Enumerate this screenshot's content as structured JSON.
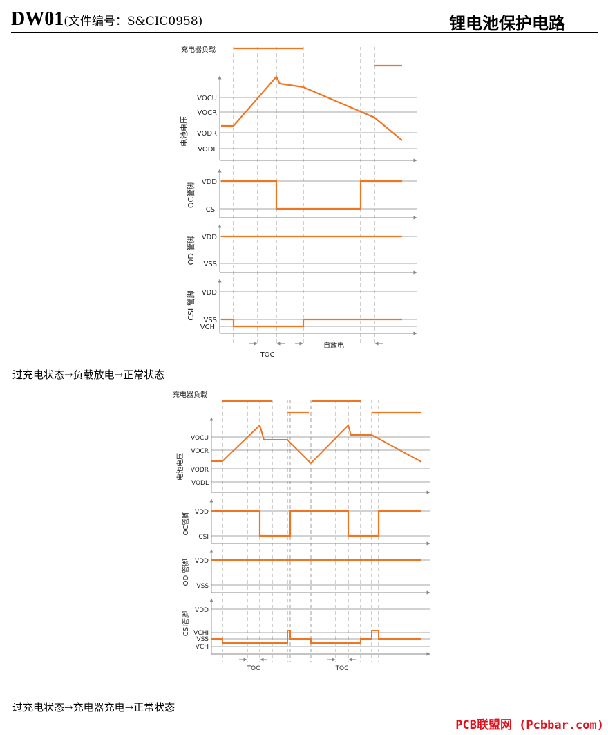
{
  "header": {
    "brand": "DW01",
    "doc_number": "(文件编号：S&CIC0958)",
    "title": "锂电池保护电路"
  },
  "diagram1": {
    "load_label": "充电器负载",
    "panels": [
      {
        "axis_label": "电池电压",
        "levels": [
          "VOCU",
          "VOCR",
          "VODR",
          "VODL"
        ]
      },
      {
        "axis_label": "OC管脚",
        "levels": [
          "VDD",
          "CSI"
        ]
      },
      {
        "axis_label": "OD 管脚",
        "levels": [
          "VDD",
          "VSS"
        ]
      },
      {
        "axis_label": "CSI 管脚",
        "levels": [
          "VDD",
          "VSS",
          "VCHI"
        ]
      }
    ],
    "time_labels": [
      "TOC",
      "自放电"
    ]
  },
  "caption1": "过充电状态→负载放电→正常状态",
  "diagram2": {
    "load_label": "充电器负载",
    "panels": [
      {
        "axis_label": "电池电压",
        "levels": [
          "VOCU",
          "VOCR",
          "VODR",
          "VODL"
        ]
      },
      {
        "axis_label": "OC管脚",
        "levels": [
          "VDD",
          "CSI"
        ]
      },
      {
        "axis_label": "OD 管脚",
        "levels": [
          "VDD",
          "VSS"
        ]
      },
      {
        "axis_label": "CSI管脚",
        "levels": [
          "VDD",
          "VCHI",
          "VSS",
          "VCH"
        ]
      }
    ],
    "time_labels": [
      "TOC",
      "TOC"
    ]
  },
  "caption2": "过充电状态→充电器充电→正常状态",
  "watermark": "PCB联盟网 (Pcbbar.com)",
  "colors": {
    "waveform": "#f07522",
    "axis": "#888888",
    "text": "#000000",
    "watermark": "#e0101a"
  }
}
